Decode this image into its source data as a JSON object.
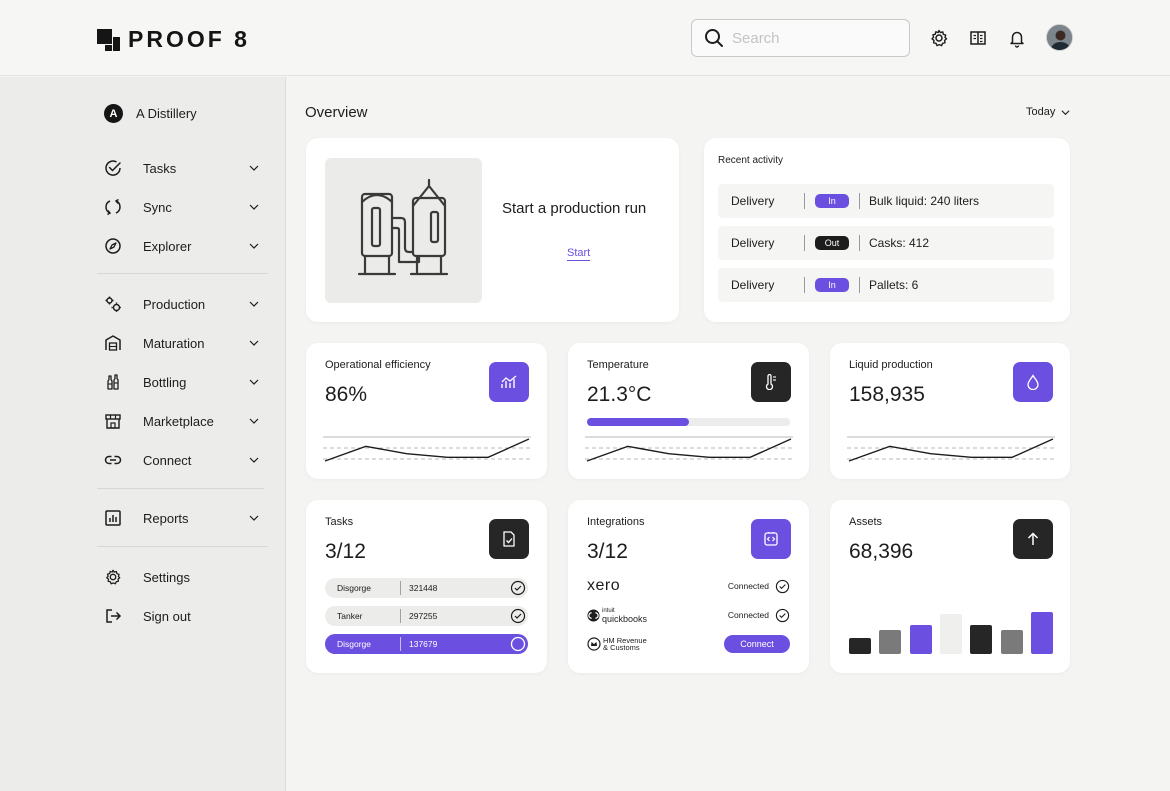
{
  "app": {
    "logo_text": "PROOF 8"
  },
  "header": {
    "search_placeholder": "Search"
  },
  "sidebar": {
    "org_initial": "A",
    "org_name": "A Distillery",
    "items": [
      {
        "label": "Tasks",
        "icon": "check-circle-icon"
      },
      {
        "label": "Sync",
        "icon": "sync-icon"
      },
      {
        "label": "Explorer",
        "icon": "compass-icon"
      },
      {
        "label": "Production",
        "icon": "gears-icon"
      },
      {
        "label": "Maturation",
        "icon": "warehouse-icon"
      },
      {
        "label": "Bottling",
        "icon": "bottles-icon"
      },
      {
        "label": "Marketplace",
        "icon": "storefront-icon"
      },
      {
        "label": "Connect",
        "icon": "link-icon"
      },
      {
        "label": "Reports",
        "icon": "chart-icon"
      }
    ],
    "settings_label": "Settings",
    "signout_label": "Sign out"
  },
  "main": {
    "title": "Overview",
    "period": "Today",
    "production": {
      "title": "Start a production run",
      "start_label": "Start"
    },
    "activity": {
      "title": "Recent activity",
      "rows": [
        {
          "type": "Delivery",
          "dir": "In",
          "desc": "Bulk liquid: 240 liters"
        },
        {
          "type": "Delivery",
          "dir": "Out",
          "desc": "Casks: 412"
        },
        {
          "type": "Delivery",
          "dir": "In",
          "desc": "Pallets: 6"
        }
      ]
    },
    "efficiency": {
      "title": "Operational efficiency",
      "value": "86%"
    },
    "temperature": {
      "title": "Temperature",
      "value": "21.3°C",
      "level": 0.5
    },
    "liquid": {
      "title": "Liquid production",
      "value": "158,935"
    },
    "tasks": {
      "title": "Tasks",
      "value": "3/12",
      "rows": [
        {
          "name": "Disgorge",
          "id": "321448",
          "done": true
        },
        {
          "name": "Tanker",
          "id": "297255",
          "done": true
        },
        {
          "name": "Disgorge",
          "id": "137679",
          "done": false
        }
      ]
    },
    "integrations": {
      "title": "Integrations",
      "value": "3/12",
      "rows": [
        {
          "name": "xero",
          "status": "Connected"
        },
        {
          "name": "intuit quickbooks",
          "sub": "intuit",
          "main": "quickbooks",
          "status": "Connected"
        },
        {
          "name": "HM Revenue & Customs",
          "line1": "HM Revenue",
          "line2": "& Customs",
          "status": "Connect"
        }
      ]
    },
    "assets": {
      "title": "Assets",
      "value": "68,396"
    }
  },
  "chart_data": [
    {
      "type": "line",
      "x": [
        1,
        2,
        3,
        4,
        5,
        6
      ],
      "values": [
        0,
        2,
        1,
        0.5,
        0.5,
        3
      ],
      "title": "",
      "xlabel": "",
      "ylabel": ""
    },
    {
      "type": "line",
      "x": [
        1,
        2,
        3,
        4,
        5,
        6
      ],
      "values": [
        0,
        2,
        1,
        0.5,
        0.5,
        3
      ],
      "title": "",
      "xlabel": "",
      "ylabel": ""
    },
    {
      "type": "line",
      "x": [
        1,
        2,
        3,
        4,
        5,
        6
      ],
      "values": [
        0,
        2,
        1,
        0.5,
        0.5,
        3
      ],
      "title": "",
      "xlabel": "",
      "ylabel": ""
    },
    {
      "type": "bar",
      "values": [
        15,
        23,
        28,
        38,
        28,
        23,
        40
      ],
      "colors": [
        "#262626",
        "#7a7a7a",
        "#6b4fe0",
        "#efefee",
        "#262626",
        "#7a7a7a",
        "#6b4fe0"
      ],
      "title": "",
      "xlabel": "",
      "ylabel": ""
    }
  ],
  "colors": {
    "accent": "#6b4fe0",
    "dark": "#262626"
  }
}
